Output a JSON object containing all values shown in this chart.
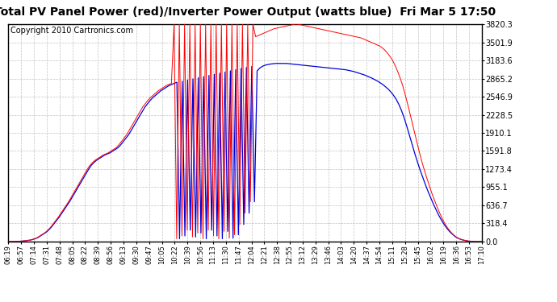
{
  "title": "Total PV Panel Power (red)/Inverter Power Output (watts blue)  Fri Mar 5 17:50",
  "copyright": "Copyright 2010 Cartronics.com",
  "ymin": 0.0,
  "ymax": 3820.3,
  "yticks": [
    0.0,
    318.4,
    636.7,
    955.1,
    1273.4,
    1591.8,
    1910.1,
    2228.5,
    2546.9,
    2865.2,
    3183.6,
    3501.9,
    3820.3
  ],
  "xtick_labels": [
    "06:19",
    "06:57",
    "07:14",
    "07:31",
    "07:48",
    "08:05",
    "08:22",
    "08:39",
    "08:56",
    "09:13",
    "09:30",
    "09:47",
    "10:05",
    "10:22",
    "10:39",
    "10:56",
    "11:13",
    "11:30",
    "11:47",
    "12:04",
    "12:21",
    "12:38",
    "12:55",
    "13:12",
    "13:29",
    "13:46",
    "14:03",
    "14:20",
    "14:37",
    "14:54",
    "15:11",
    "15:28",
    "15:45",
    "16:02",
    "16:19",
    "16:36",
    "16:53",
    "17:10"
  ],
  "bg_color": "#ffffff",
  "grid_color": "#bbbbbb",
  "line_red_color": "#ff0000",
  "line_blue_color": "#0000dd",
  "title_fontsize": 10,
  "copyright_fontsize": 7,
  "red_data": [
    0,
    0,
    0,
    2,
    5,
    8,
    12,
    18,
    25,
    35,
    50,
    70,
    100,
    130,
    160,
    200,
    250,
    310,
    370,
    430,
    500,
    570,
    640,
    710,
    790,
    870,
    950,
    1030,
    1110,
    1190,
    1270,
    1340,
    1390,
    1430,
    1460,
    1490,
    1520,
    1540,
    1560,
    1590,
    1620,
    1650,
    1700,
    1760,
    1820,
    1880,
    1960,
    2040,
    2120,
    2200,
    2280,
    2360,
    2420,
    2480,
    2530,
    2570,
    2610,
    2650,
    2680,
    2710,
    2740,
    2760,
    2780,
    3820,
    50,
    3820,
    100,
    3820,
    200,
    3820,
    80,
    3820,
    150,
    3820,
    50,
    3820,
    200,
    3820,
    100,
    3820,
    50,
    3820,
    180,
    3820,
    60,
    3820,
    120,
    3820,
    300,
    3820,
    500,
    3820,
    700,
    3820,
    3600,
    3620,
    3640,
    3660,
    3680,
    3700,
    3720,
    3740,
    3750,
    3760,
    3770,
    3780,
    3790,
    3800,
    3810,
    3820,
    3820,
    3810,
    3800,
    3790,
    3780,
    3770,
    3760,
    3750,
    3740,
    3730,
    3720,
    3710,
    3700,
    3690,
    3680,
    3670,
    3660,
    3650,
    3640,
    3630,
    3620,
    3610,
    3600,
    3590,
    3580,
    3560,
    3540,
    3520,
    3500,
    3480,
    3460,
    3440,
    3410,
    3370,
    3320,
    3260,
    3190,
    3100,
    2990,
    2870,
    2730,
    2560,
    2380,
    2190,
    2000,
    1810,
    1620,
    1440,
    1280,
    1130,
    990,
    850,
    730,
    610,
    500,
    400,
    310,
    240,
    180,
    130,
    90,
    60,
    40,
    25,
    15,
    8,
    4,
    2,
    0,
    0,
    0
  ],
  "blue_data": [
    0,
    0,
    0,
    2,
    5,
    8,
    12,
    18,
    25,
    35,
    50,
    70,
    100,
    130,
    160,
    200,
    250,
    310,
    370,
    430,
    500,
    570,
    640,
    710,
    790,
    870,
    950,
    1030,
    1110,
    1190,
    1270,
    1340,
    1390,
    1430,
    1460,
    1490,
    1520,
    1540,
    1560,
    1590,
    1620,
    1650,
    1700,
    1760,
    1820,
    1880,
    1960,
    2040,
    2120,
    2200,
    2280,
    2360,
    2420,
    2480,
    2530,
    2570,
    2610,
    2650,
    2680,
    2710,
    2740,
    2760,
    2780,
    2800,
    50,
    2820,
    100,
    2840,
    200,
    2860,
    80,
    2880,
    150,
    2900,
    50,
    2920,
    200,
    2940,
    100,
    2960,
    50,
    2980,
    180,
    3000,
    60,
    3020,
    120,
    3040,
    300,
    3060,
    500,
    3080,
    700,
    3000,
    3050,
    3080,
    3100,
    3110,
    3120,
    3125,
    3130,
    3130,
    3130,
    3130,
    3130,
    3125,
    3120,
    3115,
    3110,
    3105,
    3100,
    3095,
    3090,
    3085,
    3080,
    3075,
    3070,
    3065,
    3060,
    3055,
    3050,
    3045,
    3040,
    3035,
    3030,
    3025,
    3020,
    3010,
    3000,
    2990,
    2975,
    2960,
    2945,
    2930,
    2910,
    2890,
    2870,
    2845,
    2820,
    2790,
    2760,
    2720,
    2680,
    2630,
    2570,
    2500,
    2410,
    2300,
    2170,
    2020,
    1860,
    1700,
    1540,
    1390,
    1250,
    1120,
    990,
    870,
    760,
    650,
    550,
    455,
    370,
    295,
    230,
    175,
    130,
    90,
    62,
    42,
    28,
    17,
    9,
    5,
    2,
    0,
    0,
    0
  ]
}
